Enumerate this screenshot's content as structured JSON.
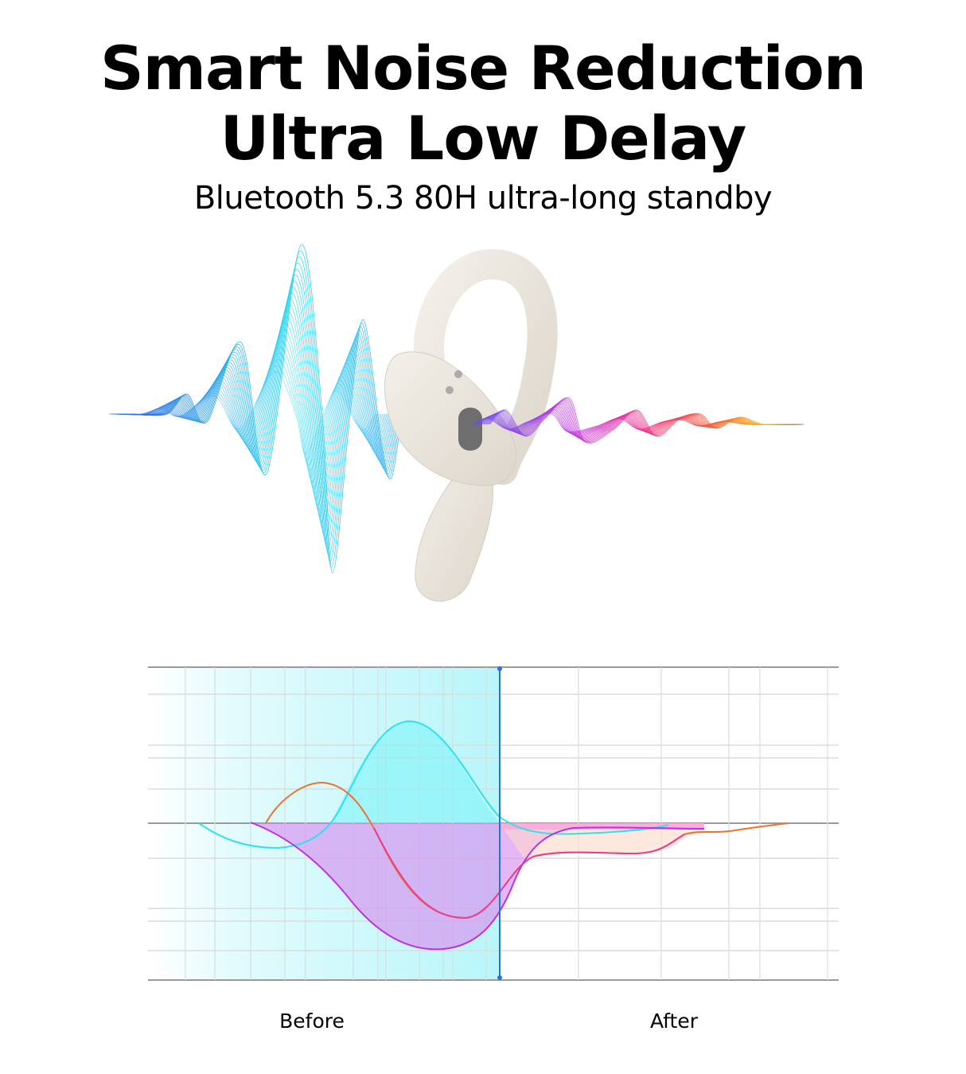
{
  "headline": {
    "line1": "Smart Noise Reduction",
    "line2": "Ultra Low Delay",
    "subtitle": "Bluetooth 5.3 80H ultra-long standby"
  },
  "illustration": {
    "left_wave_colors": [
      "#2f6fe0",
      "#22d8f0"
    ],
    "right_wave_colors": [
      "#6a4cf0",
      "#c030e0",
      "#f0307a",
      "#f06030",
      "#f5c020"
    ],
    "earbud_color": "#e9e4dc"
  },
  "comparison_graph": {
    "labels": {
      "before": "Before",
      "after": "After"
    },
    "colors": {
      "cyan": "#2ee0f0",
      "orange": "#f07030",
      "magenta": "#c030e0",
      "divider": "#2b6fe0",
      "before_shade": "#c8f8fb"
    }
  }
}
